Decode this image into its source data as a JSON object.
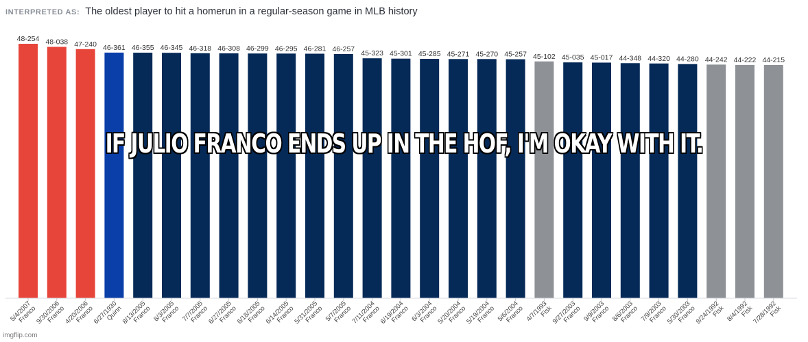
{
  "header": {
    "interpreted_label": "INTERPRETED AS:",
    "title": "The oldest player to hit a homerun in a regular-season game in MLB history"
  },
  "caption": "IF JULIO FRANCO ENDS UP IN THE HOF, I'M OKAY WITH IT.",
  "watermark": "imgflip.com",
  "colors": {
    "red": "#e8453a",
    "blue": "#0a3ea9",
    "navy": "#062a57",
    "gray": "#8e9196"
  },
  "chart_data": {
    "type": "bar",
    "value_labels": [
      "48-254",
      "48-038",
      "47-240",
      "46-361",
      "46-355",
      "46-345",
      "46-318",
      "46-308",
      "46-299",
      "46-295",
      "46-281",
      "46-257",
      "45-323",
      "45-301",
      "45-285",
      "45-271",
      "45-270",
      "45-257",
      "45-102",
      "45-035",
      "45-017",
      "44-348",
      "44-320",
      "44-280",
      "44-242",
      "44-222",
      "44-215"
    ],
    "values": [
      48.696,
      48.104,
      47.658,
      46.989,
      46.973,
      46.945,
      46.871,
      46.844,
      46.819,
      46.808,
      46.77,
      46.704,
      45.885,
      45.825,
      45.781,
      45.742,
      45.74,
      45.704,
      45.279,
      45.096,
      45.047,
      44.953,
      44.877,
      44.767,
      44.663,
      44.608,
      44.589
    ],
    "categories": [
      {
        "date": "5/4/2007",
        "player": "Franco"
      },
      {
        "date": "9/30/2006",
        "player": "Franco"
      },
      {
        "date": "4/20/2006",
        "player": "Franco"
      },
      {
        "date": "6/27/1930",
        "player": "Quinn"
      },
      {
        "date": "8/13/2005",
        "player": "Franco"
      },
      {
        "date": "8/3/2005",
        "player": "Franco"
      },
      {
        "date": "7/7/2005",
        "player": "Franco"
      },
      {
        "date": "6/27/2005",
        "player": "Franco"
      },
      {
        "date": "6/18/2005",
        "player": "Franco"
      },
      {
        "date": "6/14/2005",
        "player": "Franco"
      },
      {
        "date": "5/31/2005",
        "player": "Franco"
      },
      {
        "date": "5/7/2005",
        "player": "Franco"
      },
      {
        "date": "7/11/2004",
        "player": "Franco"
      },
      {
        "date": "6/19/2004",
        "player": "Franco"
      },
      {
        "date": "6/3/2004",
        "player": "Franco"
      },
      {
        "date": "5/20/2004",
        "player": "Franco"
      },
      {
        "date": "5/19/2004",
        "player": "Franco"
      },
      {
        "date": "5/6/2004",
        "player": "Franco"
      },
      {
        "date": "4/7/1993",
        "player": "Fisk"
      },
      {
        "date": "9/27/2003",
        "player": "Franco"
      },
      {
        "date": "9/9/2003",
        "player": "Franco"
      },
      {
        "date": "8/6/2003",
        "player": "Franco"
      },
      {
        "date": "7/9/2003",
        "player": "Franco"
      },
      {
        "date": "5/30/2003",
        "player": "Franco"
      },
      {
        "date": "8/24/1992",
        "player": "Fisk"
      },
      {
        "date": "8/4/1992",
        "player": "Fisk"
      },
      {
        "date": "7/28/1992",
        "player": "Fisk"
      }
    ],
    "bar_colors": [
      "red",
      "red",
      "red",
      "blue",
      "navy",
      "navy",
      "navy",
      "navy",
      "navy",
      "navy",
      "navy",
      "navy",
      "navy",
      "navy",
      "navy",
      "navy",
      "navy",
      "navy",
      "gray",
      "navy",
      "navy",
      "navy",
      "navy",
      "navy",
      "gray",
      "gray",
      "gray"
    ],
    "ylim": [
      0,
      50
    ],
    "grid": false,
    "legend": "none"
  }
}
